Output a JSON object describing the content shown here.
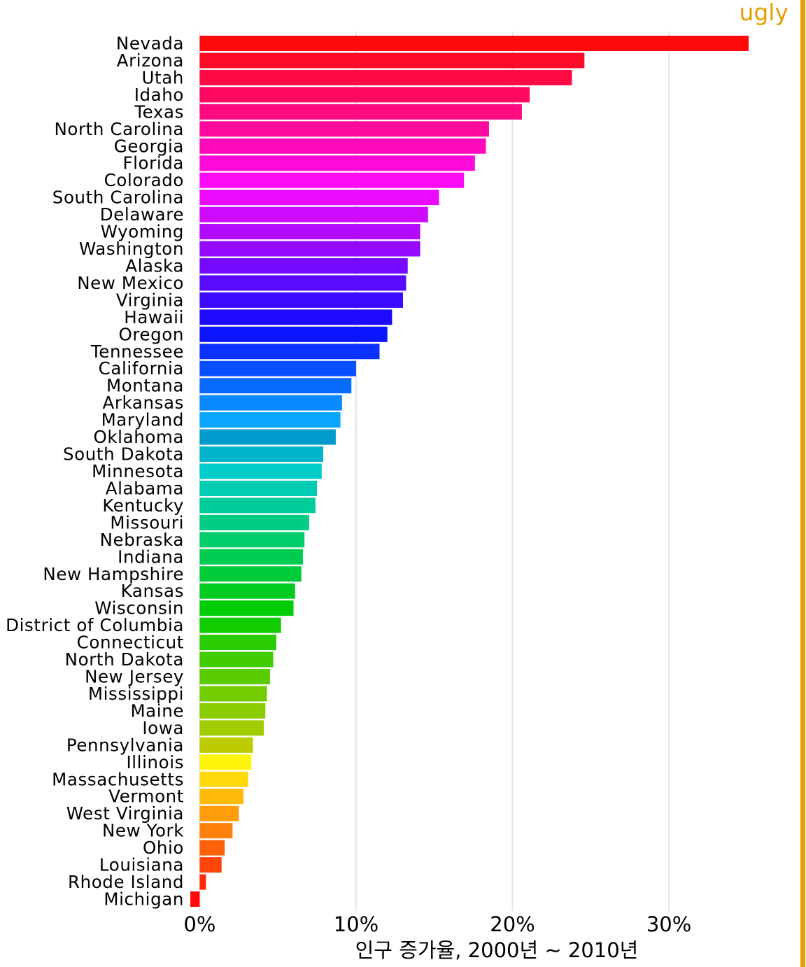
{
  "chart_data": {
    "type": "bar",
    "orientation": "horizontal",
    "title": "",
    "tag": "ugly",
    "xlabel": "인구 증가율, 2000년 ~ 2010년",
    "ylabel": "",
    "xlim": [
      -0.6,
      37.2
    ],
    "xticks": [
      0,
      10,
      20,
      30
    ],
    "xtick_labels": [
      "0%",
      "10%",
      "20%",
      "30%"
    ],
    "grid": "vertical major",
    "legend": "none",
    "categories": [
      "Nevada",
      "Arizona",
      "Utah",
      "Idaho",
      "Texas",
      "North Carolina",
      "Georgia",
      "Florida",
      "Colorado",
      "South Carolina",
      "Delaware",
      "Wyoming",
      "Washington",
      "Alaska",
      "New Mexico",
      "Virginia",
      "Hawaii",
      "Oregon",
      "Tennessee",
      "California",
      "Montana",
      "Arkansas",
      "Maryland",
      "Oklahoma",
      "South Dakota",
      "Minnesota",
      "Alabama",
      "Kentucky",
      "Missouri",
      "Nebraska",
      "Indiana",
      "New Hampshire",
      "Kansas",
      "Wisconsin",
      "District of Columbia",
      "Connecticut",
      "North Dakota",
      "New Jersey",
      "Mississippi",
      "Maine",
      "Iowa",
      "Pennsylvania",
      "Illinois",
      "Massachusetts",
      "Vermont",
      "West Virginia",
      "New York",
      "Ohio",
      "Louisiana",
      "Rhode Island",
      "Michigan"
    ],
    "values": [
      35.1,
      24.6,
      23.8,
      21.1,
      20.6,
      18.5,
      18.3,
      17.6,
      16.9,
      15.3,
      14.6,
      14.1,
      14.1,
      13.3,
      13.2,
      13.0,
      12.3,
      12.0,
      11.5,
      10.0,
      9.7,
      9.1,
      9.0,
      8.7,
      7.9,
      7.8,
      7.5,
      7.4,
      7.0,
      6.7,
      6.6,
      6.5,
      6.1,
      6.0,
      5.2,
      4.9,
      4.7,
      4.5,
      4.3,
      4.2,
      4.1,
      3.4,
      3.3,
      3.1,
      2.8,
      2.5,
      2.1,
      1.6,
      1.4,
      0.4,
      -0.6
    ],
    "colors": {
      "tag": "#E69F00",
      "grid": "#E6E6E6",
      "bar_palette": "rainbow (hue wheel, red at top through pink, purple, blue, teal, green, olive, orange to red at bottom)"
    }
  }
}
